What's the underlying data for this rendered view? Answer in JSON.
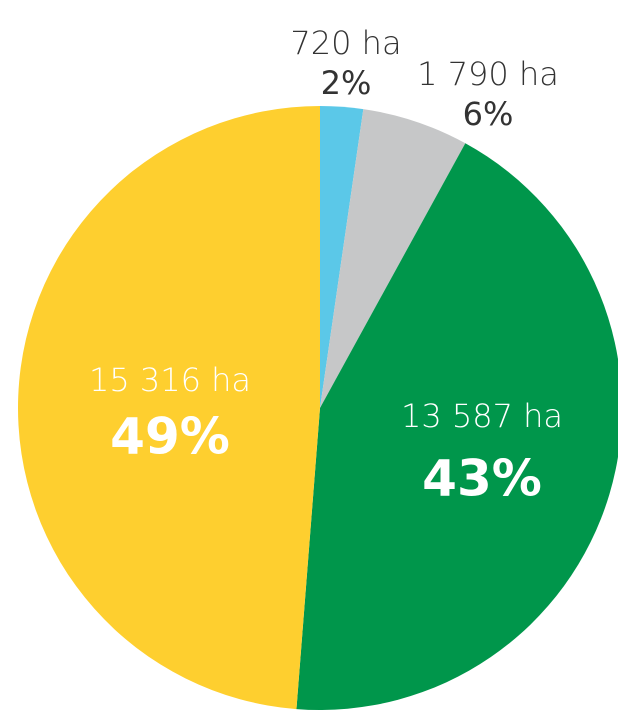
{
  "chart_data": {
    "type": "pie",
    "values": [
      720,
      1790,
      13587,
      15316
    ],
    "value_labels": [
      "720 ha",
      "1 790 ha",
      "13 587 ha",
      "15 316 ha"
    ],
    "percent_labels": [
      "2%",
      "6%",
      "43%",
      "49%"
    ],
    "colors": [
      "#5bc8e8",
      "#c6c7c8",
      "#00964b",
      "#fecf2f"
    ]
  }
}
